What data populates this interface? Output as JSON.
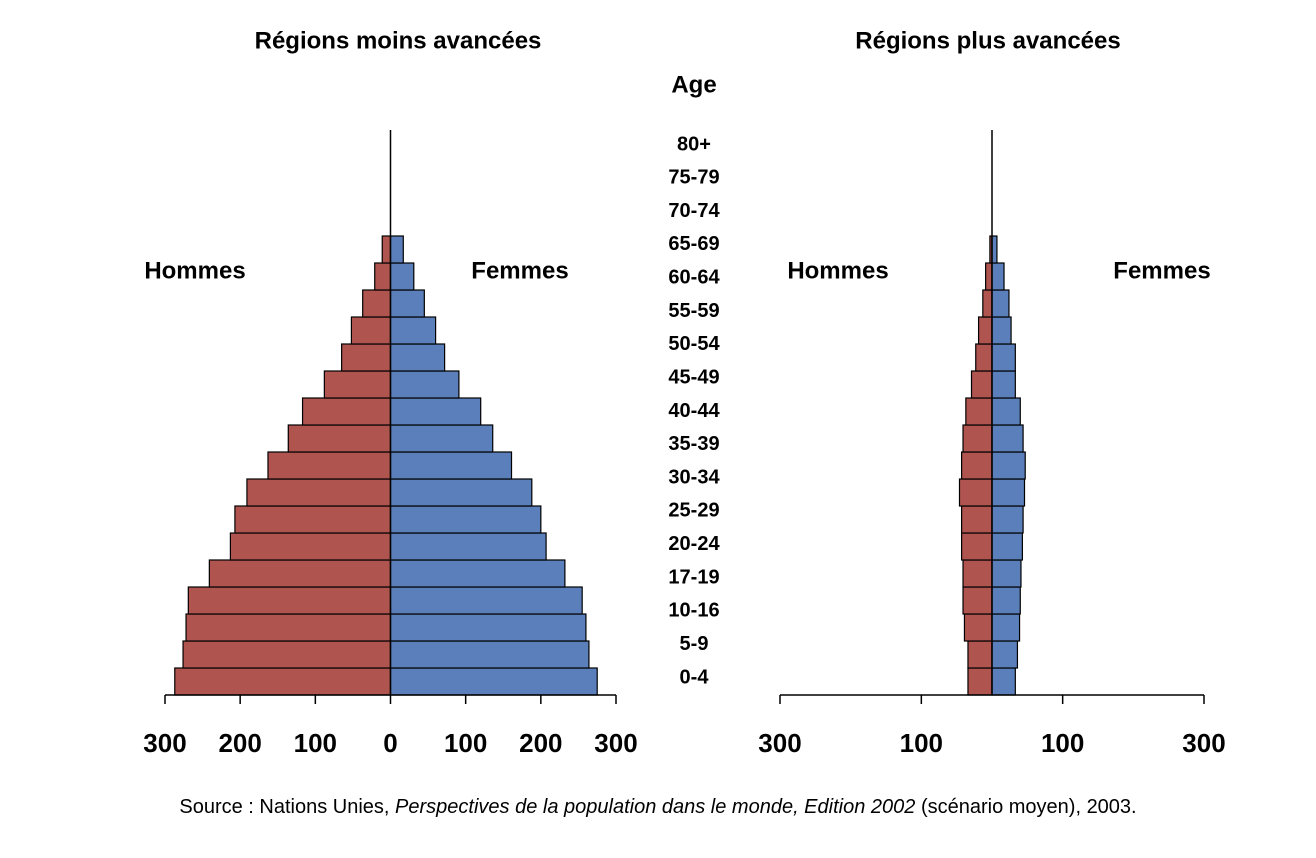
{
  "chart_data": [
    {
      "type": "pyramid",
      "title": "Régions moins avancées",
      "y_axis_label": "Age",
      "categories": [
        "0-4",
        "5-9",
        "10-16",
        "17-19",
        "20-24",
        "25-29",
        "30-34",
        "35-39",
        "40-44",
        "45-49",
        "50-54",
        "55-59",
        "60-64",
        "65-69",
        "70-74",
        "75-79",
        "80+"
      ],
      "series": [
        {
          "name": "Hommes",
          "color": "#b05450",
          "values": [
            287,
            276,
            272,
            269,
            241,
            213,
            207,
            191,
            163,
            136,
            117,
            88,
            65,
            52,
            37,
            21,
            11
          ]
        },
        {
          "name": "Femmes",
          "color": "#5b7fbb",
          "values": [
            275,
            264,
            260,
            255,
            232,
            207,
            200,
            188,
            161,
            136,
            120,
            91,
            72,
            60,
            45,
            31,
            17
          ]
        }
      ],
      "xlim": [
        -300,
        300
      ],
      "xticks": [
        {
          "value": -300,
          "label": "300"
        },
        {
          "value": -200,
          "label": "200"
        },
        {
          "value": -100,
          "label": "100"
        },
        0,
        100,
        200,
        300
      ]
    },
    {
      "type": "pyramid",
      "title": "Régions plus avancées",
      "series": [
        {
          "name": "Hommes",
          "color": "#b05450",
          "values": [
            34,
            34,
            39,
            41,
            41,
            43,
            43,
            46,
            43,
            41,
            37,
            29,
            23,
            19,
            13,
            9,
            3
          ]
        },
        {
          "name": "Femmes",
          "color": "#5b7fbb",
          "values": [
            33,
            36,
            39,
            40,
            41,
            43,
            44,
            46,
            47,
            44,
            40,
            33,
            33,
            27,
            24,
            17,
            7
          ]
        }
      ],
      "xlim": [
        -300,
        300
      ],
      "xticks": [
        {
          "value": -300,
          "label": "300"
        },
        {
          "value": -100,
          "label": "100"
        },
        100,
        300
      ]
    }
  ],
  "source": {
    "prefix": "Source : Nations Unies, ",
    "italic": "Perspectives de la population dans le monde, Edition 2002",
    "suffix": " (scénario moyen), 2003."
  }
}
